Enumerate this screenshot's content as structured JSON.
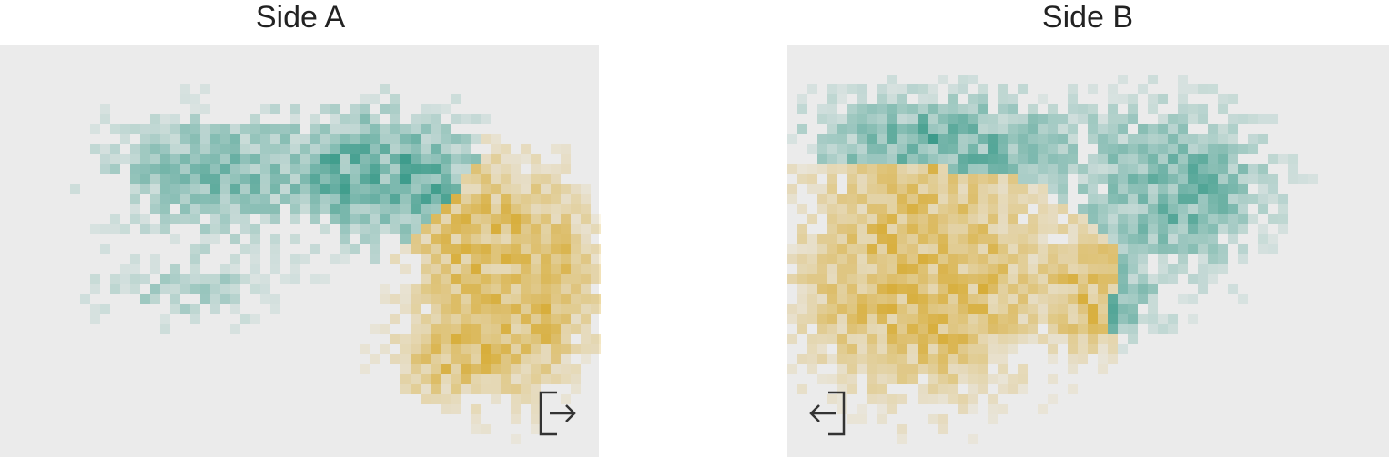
{
  "panels": [
    {
      "title": "Side A"
    },
    {
      "title": "Side B"
    }
  ]
}
